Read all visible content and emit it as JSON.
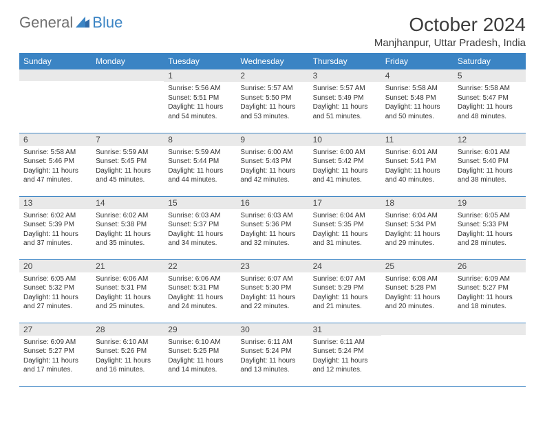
{
  "brand": {
    "part1": "General",
    "part2": "Blue"
  },
  "title": "October 2024",
  "location": "Manjhanpur, Uttar Pradesh, India",
  "colors": {
    "header_bg": "#3b84c4",
    "header_text": "#ffffff",
    "daynum_bg": "#e9e9e9",
    "border": "#3b84c4",
    "body_text": "#333333",
    "logo_gray": "#6f6f6f",
    "logo_blue": "#3b84c4"
  },
  "typography": {
    "title_fontsize": 28,
    "location_fontsize": 15,
    "dayhead_fontsize": 12,
    "daynum_fontsize": 12,
    "daytext_fontsize": 10
  },
  "dayNames": [
    "Sunday",
    "Monday",
    "Tuesday",
    "Wednesday",
    "Thursday",
    "Friday",
    "Saturday"
  ],
  "weeks": [
    [
      {
        "n": "",
        "l1": "",
        "l2": "",
        "l3": "",
        "l4": ""
      },
      {
        "n": "",
        "l1": "",
        "l2": "",
        "l3": "",
        "l4": ""
      },
      {
        "n": "1",
        "l1": "Sunrise: 5:56 AM",
        "l2": "Sunset: 5:51 PM",
        "l3": "Daylight: 11 hours",
        "l4": "and 54 minutes."
      },
      {
        "n": "2",
        "l1": "Sunrise: 5:57 AM",
        "l2": "Sunset: 5:50 PM",
        "l3": "Daylight: 11 hours",
        "l4": "and 53 minutes."
      },
      {
        "n": "3",
        "l1": "Sunrise: 5:57 AM",
        "l2": "Sunset: 5:49 PM",
        "l3": "Daylight: 11 hours",
        "l4": "and 51 minutes."
      },
      {
        "n": "4",
        "l1": "Sunrise: 5:58 AM",
        "l2": "Sunset: 5:48 PM",
        "l3": "Daylight: 11 hours",
        "l4": "and 50 minutes."
      },
      {
        "n": "5",
        "l1": "Sunrise: 5:58 AM",
        "l2": "Sunset: 5:47 PM",
        "l3": "Daylight: 11 hours",
        "l4": "and 48 minutes."
      }
    ],
    [
      {
        "n": "6",
        "l1": "Sunrise: 5:58 AM",
        "l2": "Sunset: 5:46 PM",
        "l3": "Daylight: 11 hours",
        "l4": "and 47 minutes."
      },
      {
        "n": "7",
        "l1": "Sunrise: 5:59 AM",
        "l2": "Sunset: 5:45 PM",
        "l3": "Daylight: 11 hours",
        "l4": "and 45 minutes."
      },
      {
        "n": "8",
        "l1": "Sunrise: 5:59 AM",
        "l2": "Sunset: 5:44 PM",
        "l3": "Daylight: 11 hours",
        "l4": "and 44 minutes."
      },
      {
        "n": "9",
        "l1": "Sunrise: 6:00 AM",
        "l2": "Sunset: 5:43 PM",
        "l3": "Daylight: 11 hours",
        "l4": "and 42 minutes."
      },
      {
        "n": "10",
        "l1": "Sunrise: 6:00 AM",
        "l2": "Sunset: 5:42 PM",
        "l3": "Daylight: 11 hours",
        "l4": "and 41 minutes."
      },
      {
        "n": "11",
        "l1": "Sunrise: 6:01 AM",
        "l2": "Sunset: 5:41 PM",
        "l3": "Daylight: 11 hours",
        "l4": "and 40 minutes."
      },
      {
        "n": "12",
        "l1": "Sunrise: 6:01 AM",
        "l2": "Sunset: 5:40 PM",
        "l3": "Daylight: 11 hours",
        "l4": "and 38 minutes."
      }
    ],
    [
      {
        "n": "13",
        "l1": "Sunrise: 6:02 AM",
        "l2": "Sunset: 5:39 PM",
        "l3": "Daylight: 11 hours",
        "l4": "and 37 minutes."
      },
      {
        "n": "14",
        "l1": "Sunrise: 6:02 AM",
        "l2": "Sunset: 5:38 PM",
        "l3": "Daylight: 11 hours",
        "l4": "and 35 minutes."
      },
      {
        "n": "15",
        "l1": "Sunrise: 6:03 AM",
        "l2": "Sunset: 5:37 PM",
        "l3": "Daylight: 11 hours",
        "l4": "and 34 minutes."
      },
      {
        "n": "16",
        "l1": "Sunrise: 6:03 AM",
        "l2": "Sunset: 5:36 PM",
        "l3": "Daylight: 11 hours",
        "l4": "and 32 minutes."
      },
      {
        "n": "17",
        "l1": "Sunrise: 6:04 AM",
        "l2": "Sunset: 5:35 PM",
        "l3": "Daylight: 11 hours",
        "l4": "and 31 minutes."
      },
      {
        "n": "18",
        "l1": "Sunrise: 6:04 AM",
        "l2": "Sunset: 5:34 PM",
        "l3": "Daylight: 11 hours",
        "l4": "and 29 minutes."
      },
      {
        "n": "19",
        "l1": "Sunrise: 6:05 AM",
        "l2": "Sunset: 5:33 PM",
        "l3": "Daylight: 11 hours",
        "l4": "and 28 minutes."
      }
    ],
    [
      {
        "n": "20",
        "l1": "Sunrise: 6:05 AM",
        "l2": "Sunset: 5:32 PM",
        "l3": "Daylight: 11 hours",
        "l4": "and 27 minutes."
      },
      {
        "n": "21",
        "l1": "Sunrise: 6:06 AM",
        "l2": "Sunset: 5:31 PM",
        "l3": "Daylight: 11 hours",
        "l4": "and 25 minutes."
      },
      {
        "n": "22",
        "l1": "Sunrise: 6:06 AM",
        "l2": "Sunset: 5:31 PM",
        "l3": "Daylight: 11 hours",
        "l4": "and 24 minutes."
      },
      {
        "n": "23",
        "l1": "Sunrise: 6:07 AM",
        "l2": "Sunset: 5:30 PM",
        "l3": "Daylight: 11 hours",
        "l4": "and 22 minutes."
      },
      {
        "n": "24",
        "l1": "Sunrise: 6:07 AM",
        "l2": "Sunset: 5:29 PM",
        "l3": "Daylight: 11 hours",
        "l4": "and 21 minutes."
      },
      {
        "n": "25",
        "l1": "Sunrise: 6:08 AM",
        "l2": "Sunset: 5:28 PM",
        "l3": "Daylight: 11 hours",
        "l4": "and 20 minutes."
      },
      {
        "n": "26",
        "l1": "Sunrise: 6:09 AM",
        "l2": "Sunset: 5:27 PM",
        "l3": "Daylight: 11 hours",
        "l4": "and 18 minutes."
      }
    ],
    [
      {
        "n": "27",
        "l1": "Sunrise: 6:09 AM",
        "l2": "Sunset: 5:27 PM",
        "l3": "Daylight: 11 hours",
        "l4": "and 17 minutes."
      },
      {
        "n": "28",
        "l1": "Sunrise: 6:10 AM",
        "l2": "Sunset: 5:26 PM",
        "l3": "Daylight: 11 hours",
        "l4": "and 16 minutes."
      },
      {
        "n": "29",
        "l1": "Sunrise: 6:10 AM",
        "l2": "Sunset: 5:25 PM",
        "l3": "Daylight: 11 hours",
        "l4": "and 14 minutes."
      },
      {
        "n": "30",
        "l1": "Sunrise: 6:11 AM",
        "l2": "Sunset: 5:24 PM",
        "l3": "Daylight: 11 hours",
        "l4": "and 13 minutes."
      },
      {
        "n": "31",
        "l1": "Sunrise: 6:11 AM",
        "l2": "Sunset: 5:24 PM",
        "l3": "Daylight: 11 hours",
        "l4": "and 12 minutes."
      },
      {
        "n": "",
        "l1": "",
        "l2": "",
        "l3": "",
        "l4": ""
      },
      {
        "n": "",
        "l1": "",
        "l2": "",
        "l3": "",
        "l4": ""
      }
    ]
  ]
}
